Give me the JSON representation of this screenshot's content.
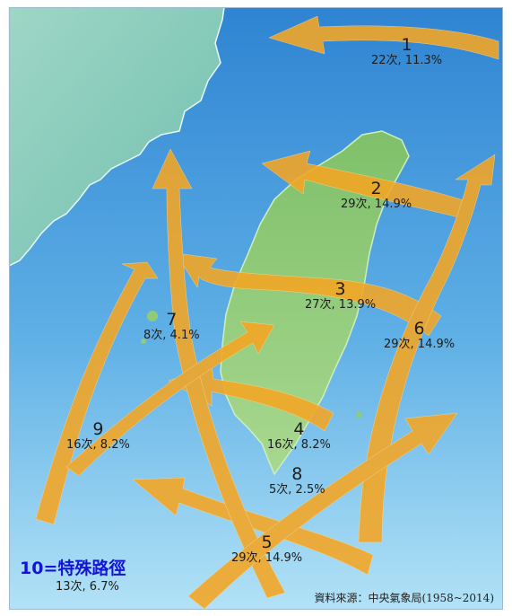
{
  "tracks": [
    {
      "id": "1",
      "count": "22次, 11.3%"
    },
    {
      "id": "2",
      "count": "29次, 14.9%"
    },
    {
      "id": "3",
      "count": "27次, 13.9%"
    },
    {
      "id": "4",
      "count": "16次, 8.2%"
    },
    {
      "id": "5",
      "count": "29次, 14.9%"
    },
    {
      "id": "6",
      "count": "29次, 14.9%"
    },
    {
      "id": "7",
      "count": "8次, 4.1%"
    },
    {
      "id": "8",
      "count": "5次, 2.5%"
    },
    {
      "id": "9",
      "count": "16次, 8.2%"
    }
  ],
  "special": {
    "title": "10=特殊路徑",
    "count": "13次, 6.7%"
  },
  "source": "資料來源：中央氣象局(1958~2014)",
  "colors": {
    "sea_top": "#2e86d4",
    "sea_bottom": "#aee0f5",
    "land": "#8fcb7a",
    "arrow": "#f5a623",
    "special_title": "#1414d6"
  }
}
